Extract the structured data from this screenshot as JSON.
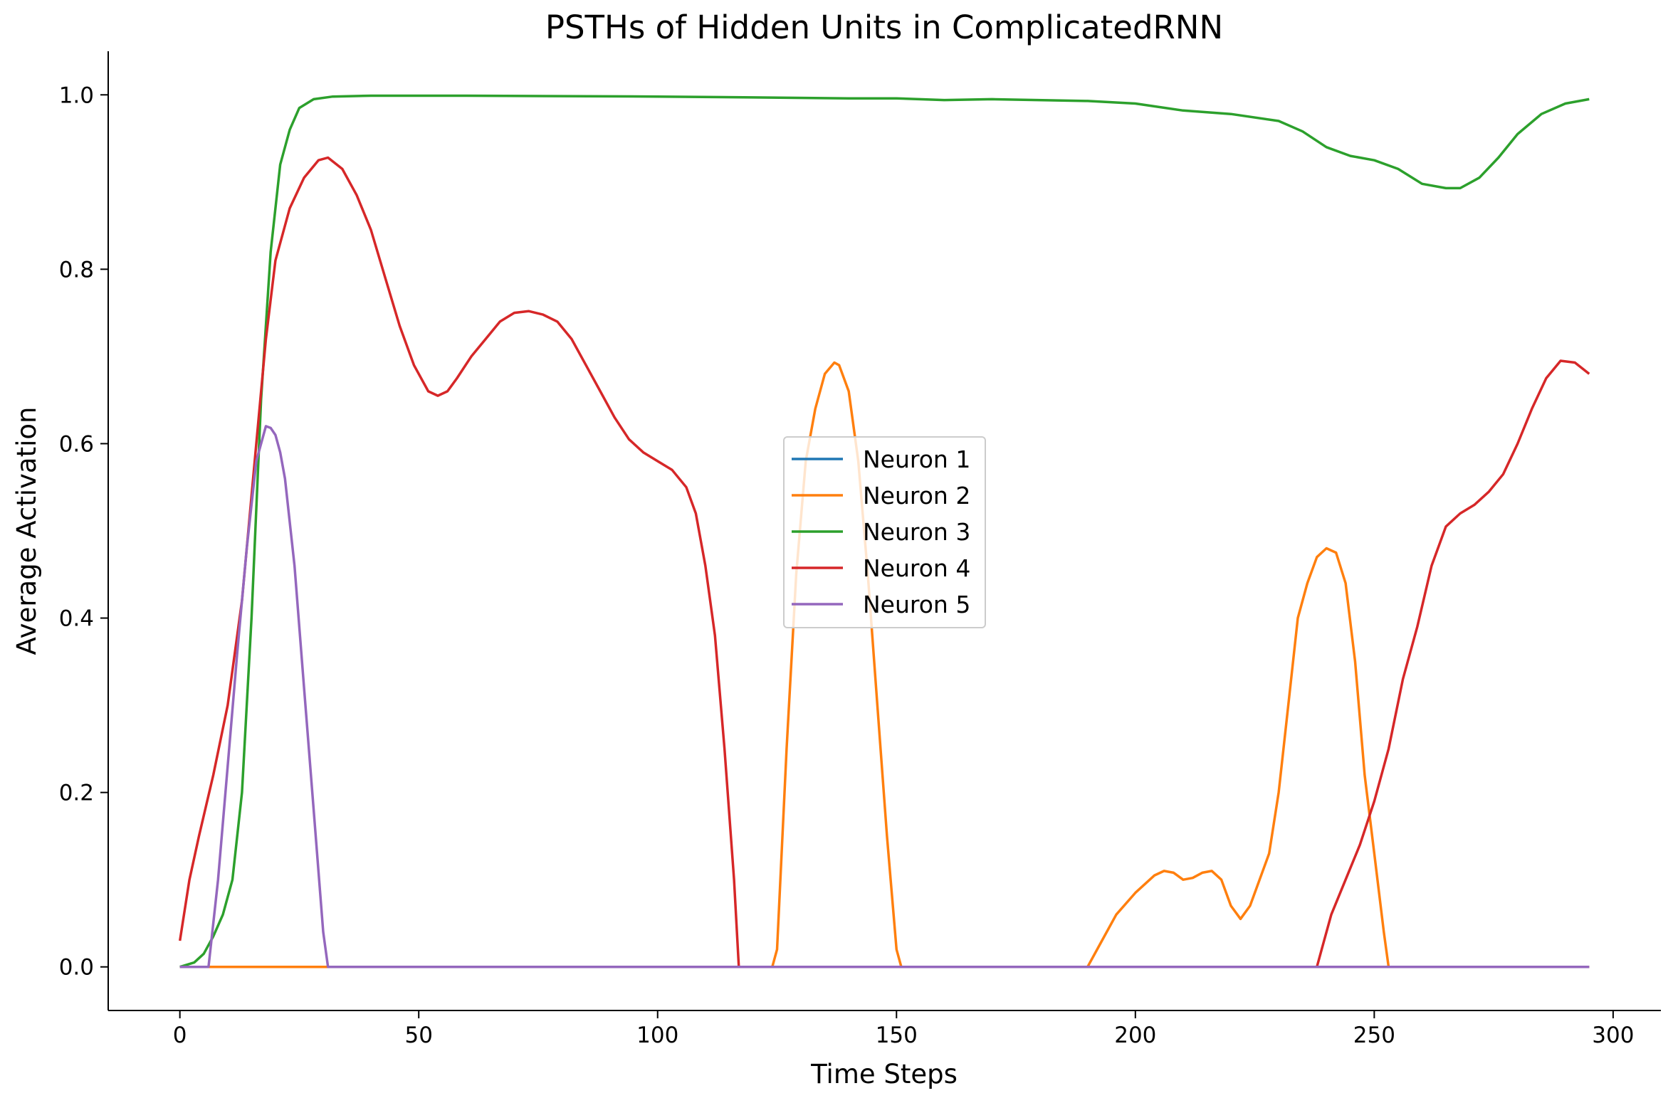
{
  "chart_data": {
    "type": "line",
    "title": "PSTHs of Hidden Units in ComplicatedRNN",
    "xlabel": "Time Steps",
    "ylabel": "Average Activation",
    "xlim": [
      -15,
      310
    ],
    "ylim": [
      -0.05,
      1.05
    ],
    "xticks": [
      0,
      50,
      100,
      150,
      200,
      250,
      300
    ],
    "yticks": [
      0.0,
      0.2,
      0.4,
      0.6,
      0.8,
      1.0
    ],
    "xtick_labels": [
      "0",
      "50",
      "100",
      "150",
      "200",
      "250",
      "300"
    ],
    "ytick_labels": [
      "0.0",
      "0.2",
      "0.4",
      "0.6",
      "0.8",
      "1.0"
    ],
    "grid": false,
    "legend_position": "center",
    "series": [
      {
        "name": "Neuron 1",
        "color": "#1f77b4",
        "points": [
          [
            0,
            0.0
          ],
          [
            295,
            0.0
          ]
        ]
      },
      {
        "name": "Neuron 2",
        "color": "#ff7f0e",
        "points": [
          [
            0,
            0.0
          ],
          [
            124,
            0.0
          ],
          [
            125,
            0.02
          ],
          [
            127,
            0.25
          ],
          [
            129,
            0.45
          ],
          [
            131,
            0.58
          ],
          [
            133,
            0.64
          ],
          [
            135,
            0.68
          ],
          [
            137,
            0.693
          ],
          [
            138,
            0.69
          ],
          [
            140,
            0.66
          ],
          [
            142,
            0.58
          ],
          [
            144,
            0.45
          ],
          [
            146,
            0.3
          ],
          [
            148,
            0.15
          ],
          [
            150,
            0.02
          ],
          [
            151,
            0.0
          ],
          [
            190,
            0.0
          ],
          [
            193,
            0.03
          ],
          [
            196,
            0.06
          ],
          [
            200,
            0.085
          ],
          [
            204,
            0.105
          ],
          [
            206,
            0.11
          ],
          [
            208,
            0.108
          ],
          [
            210,
            0.1
          ],
          [
            212,
            0.102
          ],
          [
            214,
            0.108
          ],
          [
            216,
            0.11
          ],
          [
            218,
            0.1
          ],
          [
            220,
            0.07
          ],
          [
            222,
            0.055
          ],
          [
            224,
            0.07
          ],
          [
            226,
            0.1
          ],
          [
            228,
            0.13
          ],
          [
            230,
            0.2
          ],
          [
            232,
            0.3
          ],
          [
            234,
            0.4
          ],
          [
            236,
            0.44
          ],
          [
            238,
            0.47
          ],
          [
            240,
            0.48
          ],
          [
            242,
            0.475
          ],
          [
            244,
            0.44
          ],
          [
            246,
            0.35
          ],
          [
            248,
            0.22
          ],
          [
            250,
            0.13
          ],
          [
            252,
            0.04
          ],
          [
            253,
            0.0
          ],
          [
            295,
            0.0
          ]
        ]
      },
      {
        "name": "Neuron 3",
        "color": "#2ca02c",
        "points": [
          [
            0,
            0.0
          ],
          [
            3,
            0.005
          ],
          [
            5,
            0.015
          ],
          [
            7,
            0.035
          ],
          [
            9,
            0.06
          ],
          [
            11,
            0.1
          ],
          [
            13,
            0.2
          ],
          [
            15,
            0.4
          ],
          [
            17,
            0.65
          ],
          [
            19,
            0.82
          ],
          [
            21,
            0.92
          ],
          [
            23,
            0.96
          ],
          [
            25,
            0.985
          ],
          [
            28,
            0.995
          ],
          [
            32,
            0.998
          ],
          [
            40,
            0.999
          ],
          [
            60,
            0.999
          ],
          [
            100,
            0.998
          ],
          [
            120,
            0.997
          ],
          [
            140,
            0.996
          ],
          [
            150,
            0.996
          ],
          [
            160,
            0.994
          ],
          [
            170,
            0.995
          ],
          [
            190,
            0.993
          ],
          [
            200,
            0.99
          ],
          [
            210,
            0.982
          ],
          [
            220,
            0.978
          ],
          [
            230,
            0.97
          ],
          [
            235,
            0.958
          ],
          [
            240,
            0.94
          ],
          [
            245,
            0.93
          ],
          [
            250,
            0.925
          ],
          [
            255,
            0.915
          ],
          [
            260,
            0.898
          ],
          [
            265,
            0.893
          ],
          [
            268,
            0.893
          ],
          [
            272,
            0.905
          ],
          [
            276,
            0.928
          ],
          [
            280,
            0.955
          ],
          [
            285,
            0.978
          ],
          [
            290,
            0.99
          ],
          [
            295,
            0.995
          ]
        ]
      },
      {
        "name": "Neuron 4",
        "color": "#d62728",
        "points": [
          [
            0,
            0.03
          ],
          [
            2,
            0.1
          ],
          [
            4,
            0.15
          ],
          [
            7,
            0.22
          ],
          [
            10,
            0.3
          ],
          [
            13,
            0.42
          ],
          [
            16,
            0.6
          ],
          [
            18,
            0.72
          ],
          [
            20,
            0.81
          ],
          [
            23,
            0.87
          ],
          [
            26,
            0.905
          ],
          [
            29,
            0.925
          ],
          [
            31,
            0.928
          ],
          [
            34,
            0.915
          ],
          [
            37,
            0.885
          ],
          [
            40,
            0.845
          ],
          [
            43,
            0.79
          ],
          [
            46,
            0.735
          ],
          [
            49,
            0.69
          ],
          [
            52,
            0.66
          ],
          [
            54,
            0.655
          ],
          [
            56,
            0.66
          ],
          [
            58,
            0.675
          ],
          [
            61,
            0.7
          ],
          [
            64,
            0.72
          ],
          [
            67,
            0.74
          ],
          [
            70,
            0.75
          ],
          [
            73,
            0.752
          ],
          [
            76,
            0.748
          ],
          [
            79,
            0.74
          ],
          [
            82,
            0.72
          ],
          [
            85,
            0.69
          ],
          [
            88,
            0.66
          ],
          [
            91,
            0.63
          ],
          [
            94,
            0.605
          ],
          [
            97,
            0.59
          ],
          [
            100,
            0.58
          ],
          [
            103,
            0.57
          ],
          [
            106,
            0.55
          ],
          [
            108,
            0.52
          ],
          [
            110,
            0.46
          ],
          [
            112,
            0.38
          ],
          [
            114,
            0.25
          ],
          [
            116,
            0.1
          ],
          [
            117,
            0.0
          ],
          [
            238,
            0.0
          ],
          [
            239,
            0.02
          ],
          [
            241,
            0.06
          ],
          [
            244,
            0.1
          ],
          [
            247,
            0.14
          ],
          [
            250,
            0.19
          ],
          [
            253,
            0.25
          ],
          [
            256,
            0.33
          ],
          [
            259,
            0.39
          ],
          [
            262,
            0.46
          ],
          [
            265,
            0.505
          ],
          [
            268,
            0.52
          ],
          [
            271,
            0.53
          ],
          [
            274,
            0.545
          ],
          [
            277,
            0.565
          ],
          [
            280,
            0.6
          ],
          [
            283,
            0.64
          ],
          [
            286,
            0.675
          ],
          [
            289,
            0.695
          ],
          [
            292,
            0.693
          ],
          [
            295,
            0.68
          ]
        ]
      },
      {
        "name": "Neuron 5",
        "color": "#9467bd",
        "points": [
          [
            0,
            0.0
          ],
          [
            6,
            0.0
          ],
          [
            8,
            0.1
          ],
          [
            10,
            0.23
          ],
          [
            12,
            0.36
          ],
          [
            14,
            0.48
          ],
          [
            16,
            0.58
          ],
          [
            18,
            0.62
          ],
          [
            19,
            0.618
          ],
          [
            20,
            0.61
          ],
          [
            21,
            0.59
          ],
          [
            22,
            0.56
          ],
          [
            24,
            0.46
          ],
          [
            26,
            0.32
          ],
          [
            28,
            0.18
          ],
          [
            30,
            0.04
          ],
          [
            31,
            0.0
          ],
          [
            295,
            0.0
          ]
        ]
      }
    ]
  }
}
